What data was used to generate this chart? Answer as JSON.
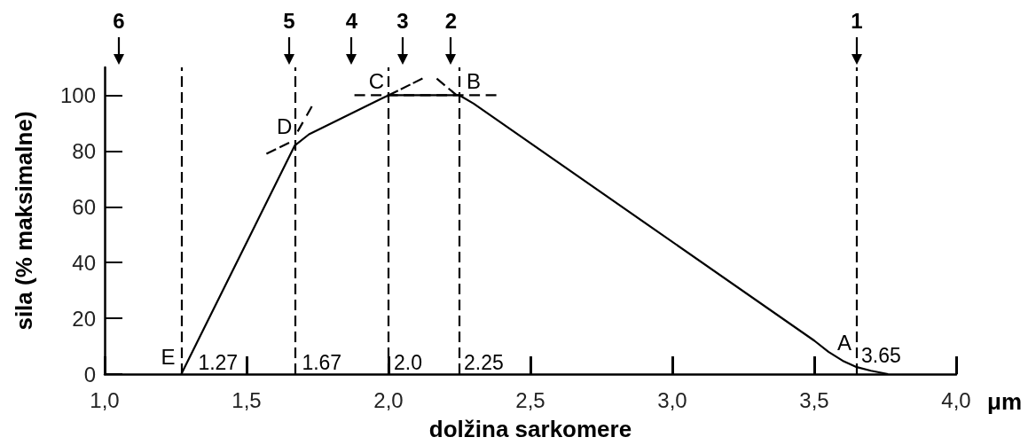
{
  "chart_data": {
    "type": "line",
    "xlabel": "dolžina sarkomere",
    "ylabel": "sila (% maksimalne)",
    "series": [
      {
        "color": "#000000",
        "x": [
          1.27,
          1.67,
          1.72,
          1.98,
          2.0,
          2.25,
          2.3,
          3.5,
          3.55,
          3.6,
          3.65,
          3.7,
          3.76
        ],
        "values": [
          0,
          82,
          86,
          99,
          100,
          100,
          97,
          12,
          8,
          4.8,
          2.5,
          1.2,
          0
        ]
      },
      {
        "color": "#000000",
        "line_style": "dashed",
        "x": [
          1.57,
          1.65
        ],
        "values": [
          79,
          83
        ]
      },
      {
        "color": "#000000",
        "line_style": "dashed",
        "x": [
          1.68,
          1.73
        ],
        "values": [
          87,
          96
        ]
      },
      {
        "color": "#000000",
        "line_style": "dashed",
        "x": [
          1.88,
          2.38
        ],
        "values": [
          100,
          100
        ]
      },
      {
        "color": "#000000",
        "line_style": "dashed",
        "x": [
          2.0,
          2.12
        ],
        "values": [
          100,
          106
        ]
      },
      {
        "color": "#000000",
        "line_style": "dashed",
        "x": [
          2.17,
          2.24
        ],
        "values": [
          106,
          100
        ]
      }
    ],
    "xlim": [
      1.0,
      4.0
    ],
    "xticks": [
      {
        "value": 1.0,
        "label": "1,0"
      },
      {
        "value": 1.5,
        "label": "1,5"
      },
      {
        "value": 2.0,
        "label": "2,0"
      },
      {
        "value": 2.5,
        "label": "2,5"
      },
      {
        "value": 3.0,
        "label": "3,0"
      },
      {
        "value": 3.5,
        "label": "3,5"
      },
      {
        "value": 4.0,
        "label": "4,0"
      }
    ],
    "ylim": [
      0,
      110
    ],
    "yticks": [
      0,
      20,
      40,
      60,
      80,
      100
    ],
    "ref_lines": [
      {
        "axis": "x",
        "value": 1.27,
        "label": "1.27",
        "line_style": "dashed",
        "color": "#000000"
      },
      {
        "axis": "x",
        "value": 1.67,
        "label": "1.67",
        "line_style": "dashed",
        "color": "#000000"
      },
      {
        "axis": "x",
        "value": 2.0,
        "label": "2.0",
        "line_style": "dashed",
        "color": "#000000"
      },
      {
        "axis": "x",
        "value": 2.25,
        "label": "2.25",
        "line_style": "dashed",
        "color": "#000000"
      },
      {
        "axis": "x",
        "value": 3.65,
        "label": "3.65",
        "line_style": "dashed",
        "color": "#000000"
      }
    ],
    "annotations": [
      {
        "text": "E",
        "x": 1.27,
        "y": 0
      },
      {
        "text": "D",
        "x": 1.67,
        "y": 82
      },
      {
        "text": "C",
        "x": 2.0,
        "y": 100
      },
      {
        "text": "B",
        "x": 2.25,
        "y": 100
      },
      {
        "text": "A",
        "x": 3.65,
        "y": 2.5
      },
      "6",
      "5",
      "4",
      "3",
      "2",
      "1",
      "μm"
    ],
    "line_style": "solid",
    "marker": "none",
    "grid": false
  }
}
